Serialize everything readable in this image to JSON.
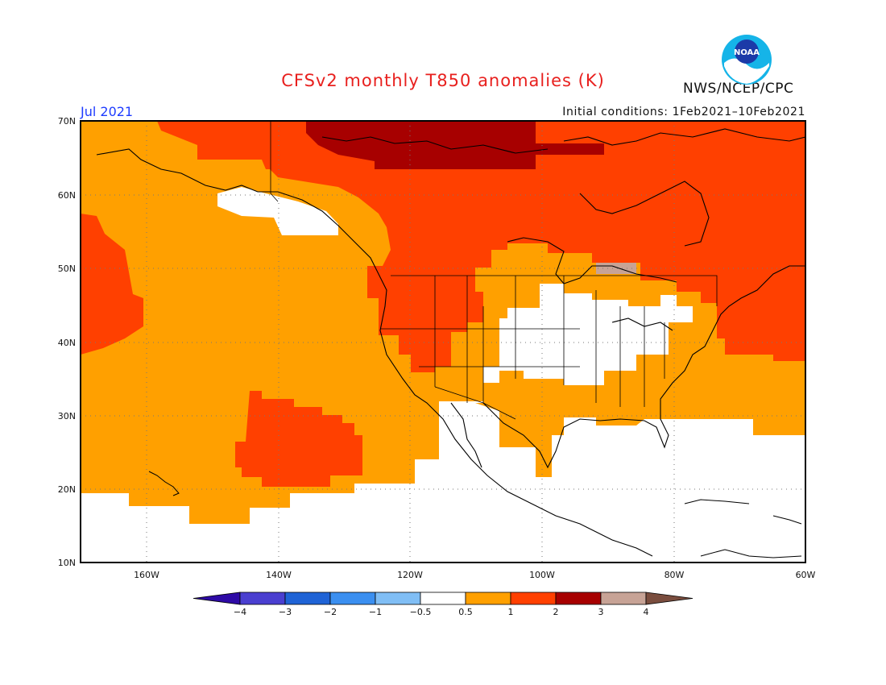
{
  "title": "CFSv2 monthly T850 anomalies (K)",
  "valid_month": "Jul 2021",
  "initial_conditions": "Initial conditions: 1Feb2021–10Feb2021",
  "organization": "NWS/NCEP/CPC",
  "logo_text": "NOAA",
  "lat_labels": [
    "70N",
    "60N",
    "50N",
    "40N",
    "30N",
    "20N",
    "10N"
  ],
  "lon_labels": [
    "160W",
    "140W",
    "120W",
    "100W",
    "80W",
    "60W"
  ],
  "colorbar": {
    "levels": [
      "−4",
      "−3",
      "−2",
      "−1",
      "−0.5",
      "0.5",
      "1",
      "2",
      "3",
      "4"
    ],
    "colors": [
      "#2e0aa6",
      "#4a3fd0",
      "#1f63d6",
      "#3b8ff0",
      "#80bef5",
      "#ffffff",
      "#ffa000",
      "#ff4000",
      "#a70000",
      "#c7a396",
      "#7a4d3e"
    ]
  },
  "legend_colors": {
    "0.5-1": "#ffa000",
    "1-2": "#ff4000",
    "2-3": "#a70000",
    "neutral": "#ffffff"
  }
}
